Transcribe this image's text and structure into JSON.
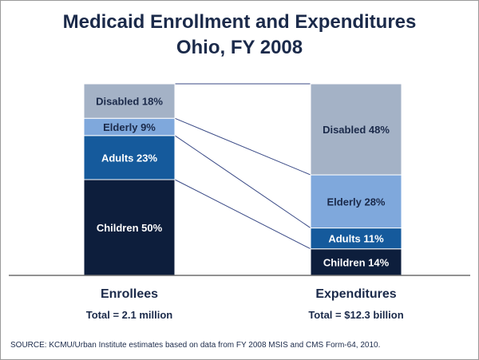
{
  "title_line1": "Medicaid Enrollment and Expenditures",
  "title_line2": "Ohio, FY 2008",
  "source": "SOURCE:  KCMU/Urban Institute estimates based on data from FY 2008 MSIS and CMS Form-64,  2010.",
  "chart_data": {
    "type": "bar",
    "stacked": true,
    "unit": "percent",
    "categories": [
      "Enrollees",
      "Expenditures"
    ],
    "totals": [
      "Total = 2.1 million",
      "Total = $12.3 billion"
    ],
    "series": [
      {
        "name": "Children",
        "values": [
          50,
          14
        ],
        "labels": [
          "Children 50%",
          "Children 14%"
        ],
        "color": "#0d1e3c"
      },
      {
        "name": "Adults",
        "values": [
          23,
          11
        ],
        "labels": [
          "Adults 23%",
          "Adults 11%"
        ],
        "color": "#155a9c"
      },
      {
        "name": "Elderly",
        "values": [
          9,
          28
        ],
        "labels": [
          "Elderly 9%",
          "Elderly 28%"
        ],
        "color": "#7fa8dc"
      },
      {
        "name": "Disabled",
        "values": [
          18,
          48
        ],
        "labels": [
          "Disabled 18%",
          "Disabled 48%"
        ],
        "color": "#a4b2c6"
      }
    ],
    "connector_lines": true,
    "grid": false,
    "legend": "none"
  }
}
